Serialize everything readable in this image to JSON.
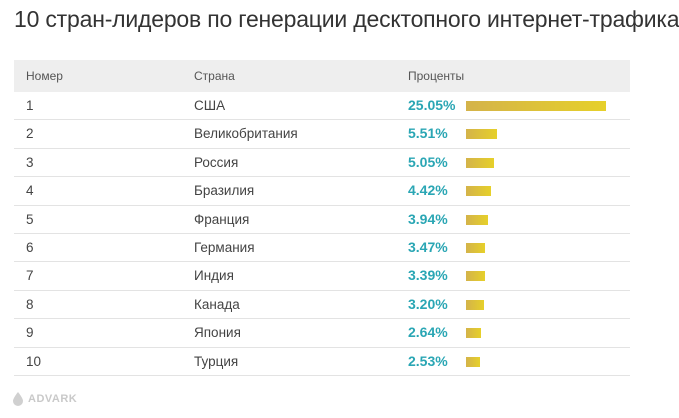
{
  "title": "10 стран-лидеров по генерации десктопного интернет-трафика",
  "chart_data": {
    "type": "table",
    "title": "10 стран-лидеров по генерации десктопного интернет-трафика",
    "columns": [
      "Номер",
      "Страна",
      "Проценты"
    ],
    "rows": [
      {
        "num": "1",
        "country": "США",
        "pct": "25.05%",
        "value": 25.05
      },
      {
        "num": "2",
        "country": "Великобритания",
        "pct": "5.51%",
        "value": 5.51
      },
      {
        "num": "3",
        "country": "Россия",
        "pct": "5.05%",
        "value": 5.05
      },
      {
        "num": "4",
        "country": "Бразилия",
        "pct": "4.42%",
        "value": 4.42
      },
      {
        "num": "5",
        "country": "Франция",
        "pct": "3.94%",
        "value": 3.94
      },
      {
        "num": "6",
        "country": "Германия",
        "pct": "3.47%",
        "value": 3.47
      },
      {
        "num": "7",
        "country": "Индия",
        "pct": "3.39%",
        "value": 3.39
      },
      {
        "num": "8",
        "country": "Канада",
        "pct": "3.20%",
        "value": 3.2
      },
      {
        "num": "9",
        "country": "Япония",
        "pct": "2.64%",
        "value": 2.64
      },
      {
        "num": "10",
        "country": "Турция",
        "pct": "2.53%",
        "value": 2.53
      }
    ],
    "max_value": 25.05
  },
  "colors": {
    "percent_text": "#2aa6b4",
    "bar_start": "#d4b34a",
    "bar_end": "#e6d02a",
    "header_bg": "#eeeeee"
  },
  "logo": {
    "text": "ADVARK",
    "icon": "drop-logo-icon"
  }
}
